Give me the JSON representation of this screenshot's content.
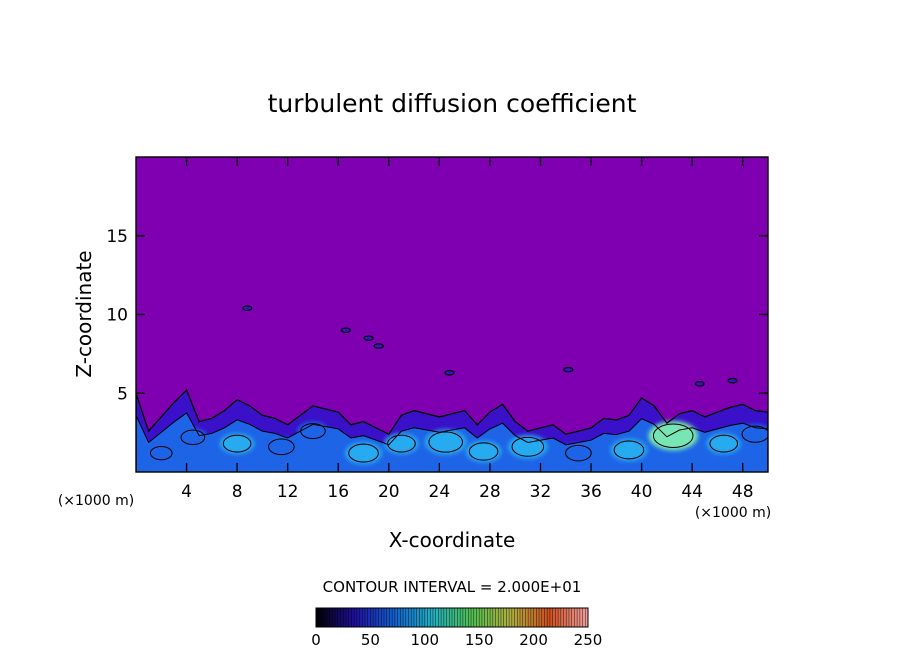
{
  "chart_data": {
    "type": "heatmap",
    "title": "turbulent diffusion coefficient",
    "xlabel": "X-coordinate",
    "ylabel": "Z-coordinate",
    "x_unit_left": "(×1000 m)",
    "x_unit_right": "(×1000 m)",
    "xlim": [
      0,
      50
    ],
    "ylim": [
      0,
      20
    ],
    "x_ticks": [
      4,
      8,
      12,
      16,
      20,
      24,
      28,
      32,
      36,
      40,
      44,
      48
    ],
    "x_tick_labels": [
      "4",
      "8",
      "12",
      "16",
      "20",
      "24",
      "28",
      "32",
      "36",
      "40",
      "44",
      "48"
    ],
    "y_ticks": [
      5,
      10,
      15
    ],
    "y_tick_labels": [
      "5",
      "10",
      "15"
    ],
    "background_value": 0,
    "contour_interval_text": "CONTOUR INTERVAL = 2.000E+01",
    "contour_interval": 20,
    "colorbar": {
      "range": [
        0,
        250
      ],
      "ticks": [
        0,
        50,
        100,
        150,
        200,
        250
      ],
      "tick_labels": [
        "0",
        "50",
        "100",
        "150",
        "200",
        "250"
      ]
    },
    "boundary_layer_top": [
      [
        0,
        5.0
      ],
      [
        1,
        2.6
      ],
      [
        3,
        4.4
      ],
      [
        4,
        5.2
      ],
      [
        5,
        3.2
      ],
      [
        6,
        3.4
      ],
      [
        7,
        3.9
      ],
      [
        8,
        4.6
      ],
      [
        9,
        4.2
      ],
      [
        10,
        3.6
      ],
      [
        11,
        3.4
      ],
      [
        12,
        3.0
      ],
      [
        13,
        3.6
      ],
      [
        14,
        4.2
      ],
      [
        15,
        4.0
      ],
      [
        16,
        3.8
      ],
      [
        17,
        3.0
      ],
      [
        18,
        3.2
      ],
      [
        19,
        2.8
      ],
      [
        20,
        2.4
      ],
      [
        21,
        3.6
      ],
      [
        22,
        3.9
      ],
      [
        23,
        3.7
      ],
      [
        24,
        3.5
      ],
      [
        25,
        3.7
      ],
      [
        26,
        3.9
      ],
      [
        27,
        3.0
      ],
      [
        28,
        3.8
      ],
      [
        29,
        4.3
      ],
      [
        30,
        3.2
      ],
      [
        31,
        2.6
      ],
      [
        32,
        2.8
      ],
      [
        33,
        3.0
      ],
      [
        34,
        2.4
      ],
      [
        35,
        2.6
      ],
      [
        36,
        2.8
      ],
      [
        37,
        3.4
      ],
      [
        38,
        3.3
      ],
      [
        39,
        3.6
      ],
      [
        40,
        4.7
      ],
      [
        41,
        4.2
      ],
      [
        42,
        3.1
      ],
      [
        43,
        3.7
      ],
      [
        44,
        3.9
      ],
      [
        45,
        3.5
      ],
      [
        46,
        3.8
      ],
      [
        47,
        4.1
      ],
      [
        48,
        4.3
      ],
      [
        49,
        3.9
      ],
      [
        50,
        3.8
      ]
    ],
    "eddies": [
      {
        "x": 2.0,
        "z": 1.2,
        "value": 60
      },
      {
        "x": 4.5,
        "z": 2.2,
        "value": 70
      },
      {
        "x": 8.0,
        "z": 1.8,
        "value": 90
      },
      {
        "x": 11.5,
        "z": 1.6,
        "value": 80
      },
      {
        "x": 14.0,
        "z": 2.6,
        "value": 75
      },
      {
        "x": 18.0,
        "z": 1.2,
        "value": 100
      },
      {
        "x": 21.0,
        "z": 1.8,
        "value": 90
      },
      {
        "x": 24.5,
        "z": 1.9,
        "value": 120
      },
      {
        "x": 27.5,
        "z": 1.3,
        "value": 95
      },
      {
        "x": 31.0,
        "z": 1.6,
        "value": 110
      },
      {
        "x": 35.0,
        "z": 1.2,
        "value": 80
      },
      {
        "x": 39.0,
        "z": 1.4,
        "value": 100
      },
      {
        "x": 42.5,
        "z": 2.3,
        "value": 150
      },
      {
        "x": 46.5,
        "z": 1.8,
        "value": 90
      },
      {
        "x": 49.0,
        "z": 2.4,
        "value": 85
      }
    ],
    "isolated_patches": [
      {
        "x": 8.8,
        "z": 10.4,
        "value": 20
      },
      {
        "x": 16.6,
        "z": 9.0,
        "value": 20
      },
      {
        "x": 18.4,
        "z": 8.5,
        "value": 20
      },
      {
        "x": 19.2,
        "z": 8.0,
        "value": 20
      },
      {
        "x": 24.8,
        "z": 6.3,
        "value": 20
      },
      {
        "x": 34.2,
        "z": 6.5,
        "value": 20
      },
      {
        "x": 44.6,
        "z": 5.6,
        "value": 20
      },
      {
        "x": 47.2,
        "z": 5.8,
        "value": 20
      }
    ]
  },
  "colors": {
    "background_field": "#7f00b0",
    "low": "#3a10c8",
    "mid": "#1e64e6",
    "high": "#28aaf0",
    "peak": "#78e6b4",
    "contour_line": "#000000",
    "colorbar_stops": [
      "#000000",
      "#2010a0",
      "#1060d0",
      "#20b0c0",
      "#50c050",
      "#b0b040",
      "#d05020",
      "#f0a0a0"
    ]
  }
}
